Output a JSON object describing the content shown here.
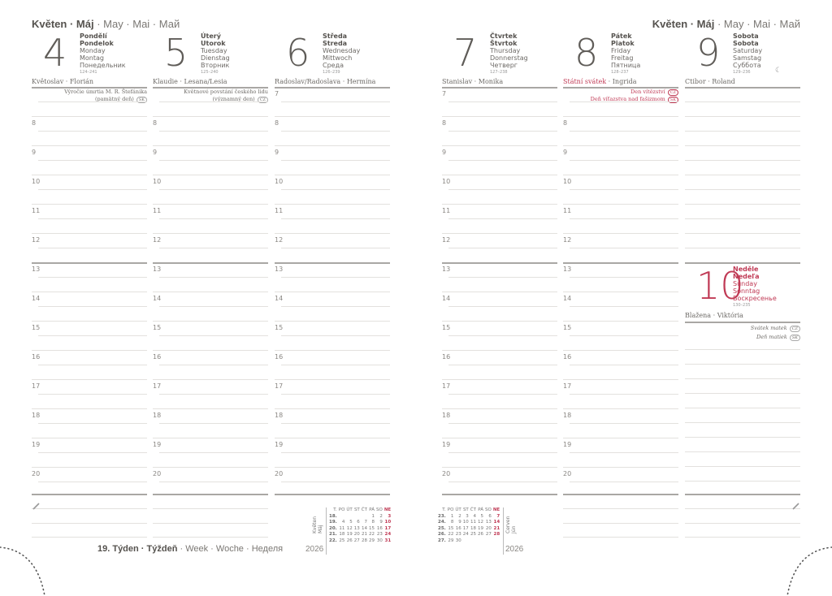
{
  "month_header": {
    "bold": "Květen · Máj",
    "rest": " · May · Mai · Май"
  },
  "days": [
    {
      "num": "4",
      "cz": "Pondělí",
      "sk": "Pondelok",
      "en": "Monday",
      "de": "Montag",
      "ru": "Понедельник",
      "code": "124–241",
      "nameday": "Květoslav · Florián",
      "notes": [
        {
          "text": "Výročie úmrtia M. R. Štefánika",
          "badge": ""
        },
        {
          "text": "(pamätný deň)",
          "badge": "SK"
        }
      ]
    },
    {
      "num": "5",
      "cz": "Úterý",
      "sk": "Utorok",
      "en": "Tuesday",
      "de": "Dienstag",
      "ru": "Вторник",
      "code": "125–240",
      "nameday": "Klaudie · Lesana/Lesia",
      "notes": [
        {
          "text": "Květnové povstání českého lidu",
          "badge": ""
        },
        {
          "text": "(významný den)",
          "badge": "CZ"
        }
      ]
    },
    {
      "num": "6",
      "cz": "Středa",
      "sk": "Streda",
      "en": "Wednesday",
      "de": "Mittwoch",
      "ru": "Среда",
      "code": "126–239",
      "nameday": "Radoslav/Radoslava · Hermína",
      "notes": []
    },
    {
      "num": "7",
      "cz": "Čtvrtek",
      "sk": "Štvrtok",
      "en": "Thursday",
      "de": "Donnerstag",
      "ru": "Четверг",
      "code": "127–238",
      "nameday": "Stanislav · Monika",
      "notes": []
    },
    {
      "num": "8",
      "cz": "Pátek",
      "sk": "Piatok",
      "en": "Friday",
      "de": "Freitag",
      "ru": "Пятница",
      "code": "128–237",
      "nameday_red": "Státní svátek",
      "nameday": " · Ingrida",
      "notes": [
        {
          "text": "Den vítězství",
          "badge": "CZ",
          "red": true
        },
        {
          "text": "Deň víťazstva nad fašizmom",
          "badge": "SK",
          "red": true
        }
      ]
    },
    {
      "num": "9",
      "cz": "Sobota",
      "sk": "Sobota",
      "en": "Saturday",
      "de": "Samstag",
      "ru": "Суббота",
      "code": "129–236",
      "nameday": "Ctibor · Roland",
      "moon": "☾",
      "notes": []
    }
  ],
  "sunday": {
    "num": "10",
    "cz": "Neděle",
    "sk": "Nedeľa",
    "en": "Sunday",
    "de": "Sonntag",
    "ru": "Воскресенье",
    "code": "130–235",
    "nameday": "Blažena · Viktória",
    "notes": [
      {
        "text": "Svátek matek",
        "badge": "CZ"
      },
      {
        "text": "Deň matiek",
        "badge": "SK"
      }
    ]
  },
  "hours": [
    "7",
    "8",
    "9",
    "10",
    "11",
    "12",
    "13",
    "14",
    "15",
    "16",
    "17",
    "18",
    "19",
    "20"
  ],
  "mini_calendars": [
    {
      "label": "Květen Máj",
      "year": "2026",
      "header": [
        "T.",
        "PO",
        "ÚT",
        "ST",
        "ČT",
        "PÁ",
        "SO",
        "NE"
      ],
      "rows": [
        [
          "18.",
          "",
          "",
          "",
          "",
          "1",
          "2",
          "3"
        ],
        [
          "19.",
          "4",
          "5",
          "6",
          "7",
          "8",
          "9",
          "10"
        ],
        [
          "20.",
          "11",
          "12",
          "13",
          "14",
          "15",
          "16",
          "17"
        ],
        [
          "21.",
          "18",
          "19",
          "20",
          "21",
          "22",
          "23",
          "24"
        ],
        [
          "22.",
          "25",
          "26",
          "27",
          "28",
          "29",
          "30",
          "31"
        ]
      ]
    },
    {
      "label": "Červen Jún",
      "year": "2026",
      "header": [
        "T.",
        "PO",
        "ÚT",
        "ST",
        "ČT",
        "PÁ",
        "SO",
        "NE"
      ],
      "rows": [
        [
          "23.",
          "1",
          "2",
          "3",
          "4",
          "5",
          "6",
          "7"
        ],
        [
          "24.",
          "8",
          "9",
          "10",
          "11",
          "12",
          "13",
          "14"
        ],
        [
          "25.",
          "15",
          "16",
          "17",
          "18",
          "19",
          "20",
          "21"
        ],
        [
          "26.",
          "22",
          "23",
          "24",
          "25",
          "26",
          "27",
          "28"
        ],
        [
          "27.",
          "29",
          "30",
          "",
          "",
          "",
          "",
          ""
        ]
      ]
    }
  ],
  "week": {
    "bold": "19. Týden · Týždeň",
    "rest": " · Week · Woche · Неделя"
  },
  "colors": {
    "accent_red": "#c03a55",
    "text": "#6d6a66"
  },
  "icons": {
    "notes": "pencil-icon",
    "moon": "moon-phase-icon"
  }
}
